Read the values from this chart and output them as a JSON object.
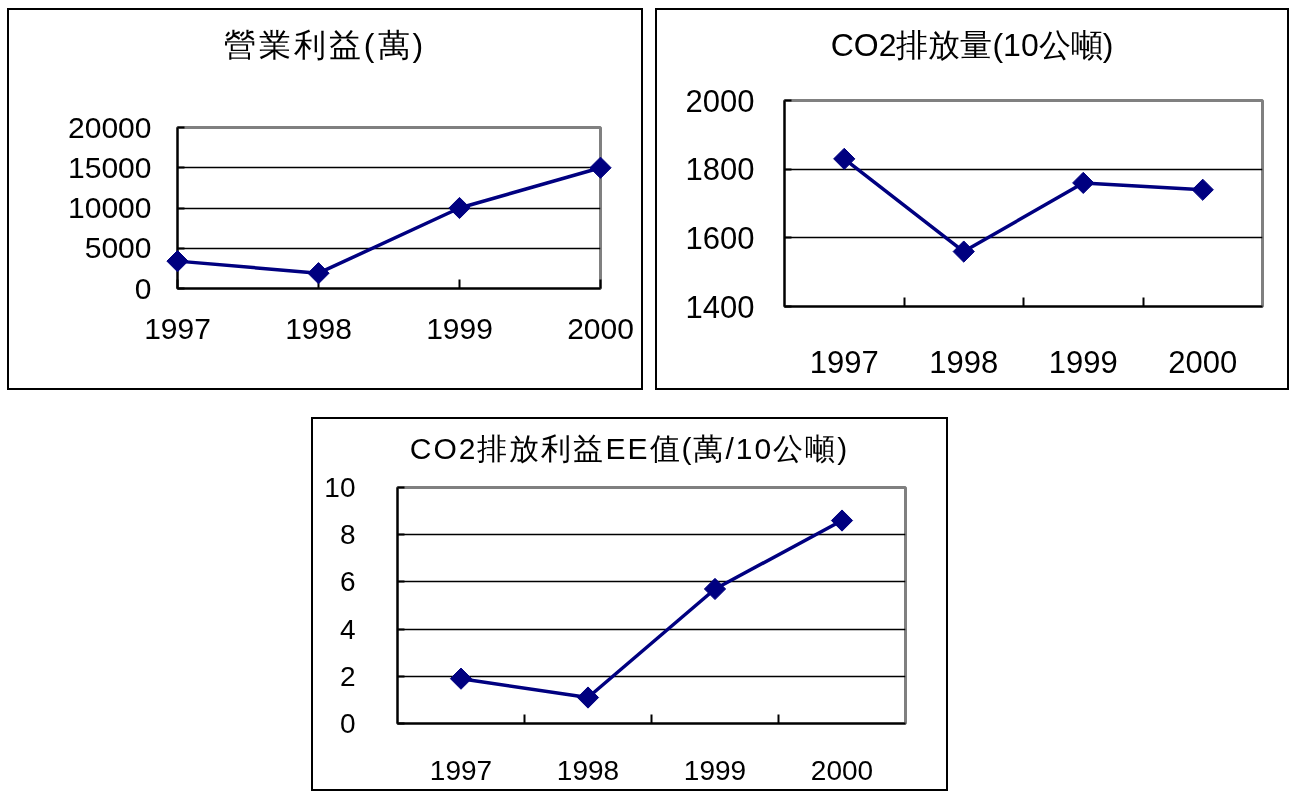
{
  "chart_data": [
    {
      "type": "line",
      "title": "營業利益(萬)",
      "categories": [
        "1997",
        "1998",
        "1999",
        "2000"
      ],
      "series": [
        {
          "color": "#000080",
          "values": [
            3400,
            1900,
            10000,
            15000
          ]
        }
      ],
      "ylim": [
        0,
        20000
      ],
      "yticks": [
        0,
        5000,
        10000,
        15000,
        20000
      ],
      "grid": "y",
      "marker": "diamond"
    },
    {
      "type": "line",
      "title": "CO2排放量(10公噸)",
      "categories": [
        "1997",
        "1998",
        "1999",
        "2000"
      ],
      "series": [
        {
          "color": "#000080",
          "values": [
            1830,
            1560,
            1760,
            1740
          ]
        }
      ],
      "ylim": [
        1400,
        2000
      ],
      "yticks": [
        1400,
        1600,
        1800,
        2000
      ],
      "grid": "y",
      "marker": "diamond"
    },
    {
      "type": "line",
      "title": "CO2排放利益EE值(萬/10公噸)",
      "categories": [
        "1997",
        "1998",
        "1999",
        "2000"
      ],
      "series": [
        {
          "color": "#000080",
          "values": [
            1.9,
            1.1,
            5.7,
            8.6
          ]
        }
      ],
      "ylim": [
        0,
        10
      ],
      "yticks": [
        0,
        2,
        4,
        6,
        8,
        10
      ],
      "grid": "y",
      "marker": "diamond"
    }
  ]
}
